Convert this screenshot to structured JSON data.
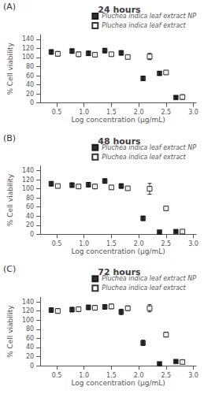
{
  "chart_data": [
    {
      "type": "scatter",
      "title": "24 hours",
      "annotation": "(A)",
      "xlabel": "Log concentration (μg/mL)",
      "ylabel": "% Cell viability",
      "xlim": [
        0.2,
        3.05
      ],
      "xticks": [
        0.5,
        {
          "value": 1.0,
          "label": "1.0"
        },
        1.5,
        {
          "value": 2.0,
          "label": "2.0"
        },
        2.5,
        {
          "value": 3.0,
          "label": "3.0"
        }
      ],
      "ylim": [
        0,
        150
      ],
      "yticks": [
        0,
        20,
        40,
        60,
        80,
        100,
        120,
        140
      ],
      "grid": false,
      "legend": "upper right",
      "series": [
        {
          "name": "Pluchea indica leaf extract NP",
          "color": "#000000",
          "marker": "filled square",
          "x": [
            0.4,
            0.78,
            1.08,
            1.38,
            1.68,
            2.08,
            2.38,
            2.68
          ],
          "values": [
            112,
            114,
            109,
            115,
            110,
            54,
            65,
            12
          ],
          "yerr": [
            5,
            5,
            5,
            5,
            5,
            5,
            4,
            3
          ]
        },
        {
          "name": "Pluchea indica leaf extract",
          "color": "#000000",
          "marker": "open square",
          "x": [
            0.52,
            0.9,
            1.2,
            1.5,
            1.8,
            2.2,
            2.5,
            2.8
          ],
          "values": [
            108,
            107,
            106,
            107,
            101,
            102,
            67,
            13
          ],
          "yerr": [
            5,
            5,
            4,
            4,
            4,
            7,
            4,
            5
          ]
        }
      ]
    },
    {
      "type": "scatter",
      "title": "48 hours",
      "annotation": "(B)",
      "xlabel": "Log concentration (μg/mL)",
      "ylabel": "% Cell viability",
      "xlim": [
        0.2,
        3.05
      ],
      "xticks": [
        0.5,
        {
          "value": 1.0,
          "label": "1.0"
        },
        1.5,
        {
          "value": 2.0,
          "label": "2.0"
        },
        2.5,
        {
          "value": 3.0,
          "label": "3.0"
        }
      ],
      "ylim": [
        0,
        150
      ],
      "yticks": [
        0,
        20,
        40,
        60,
        80,
        100,
        120,
        140
      ],
      "grid": false,
      "legend": "upper right",
      "series": [
        {
          "name": "Pluchea indica leaf extract NP",
          "color": "#000000",
          "marker": "filled square",
          "x": [
            0.4,
            0.78,
            1.08,
            1.38,
            1.68,
            2.08,
            2.38,
            2.68
          ],
          "values": [
            111,
            108,
            109,
            117,
            106,
            35,
            5,
            6
          ],
          "yerr": [
            5,
            5,
            5,
            5,
            5,
            5,
            2,
            2
          ]
        },
        {
          "name": "Pluchea indica leaf extract",
          "color": "#000000",
          "marker": "open square",
          "x": [
            0.52,
            0.9,
            1.2,
            1.5,
            1.8,
            2.2,
            2.5,
            2.8
          ],
          "values": [
            106,
            105,
            105,
            103,
            101,
            100,
            57,
            6
          ],
          "yerr": [
            4,
            4,
            5,
            4,
            4,
            12,
            3,
            3
          ]
        }
      ]
    },
    {
      "type": "scatter",
      "title": "72 hours",
      "annotation": "(C)",
      "xlabel": "Log concentration (μg/mL)",
      "ylabel": "% Cell viability",
      "xlim": [
        0.2,
        3.05
      ],
      "xticks": [
        0.5,
        {
          "value": 1.0,
          "label": "1.0"
        },
        1.5,
        {
          "value": 2.0,
          "label": "2.0"
        },
        2.5,
        {
          "value": 3.0,
          "label": "3.0"
        }
      ],
      "ylim": [
        0,
        150
      ],
      "yticks": [
        0,
        20,
        40,
        60,
        80,
        100,
        120,
        140
      ],
      "grid": false,
      "legend": "upper right",
      "series": [
        {
          "name": "Pluchea indica leaf extract NP",
          "color": "#000000",
          "marker": "filled square",
          "x": [
            0.4,
            0.78,
            1.08,
            1.38,
            1.68,
            2.08,
            2.38,
            2.68
          ],
          "values": [
            122,
            123,
            128,
            129,
            118,
            50,
            4,
            9
          ],
          "yerr": [
            5,
            5,
            5,
            5,
            6,
            6,
            2,
            2
          ]
        },
        {
          "name": "Pluchea indica leaf extract",
          "color": "#000000",
          "marker": "open square",
          "x": [
            0.52,
            0.9,
            1.2,
            1.5,
            1.8,
            2.2,
            2.5,
            2.8
          ],
          "values": [
            120,
            124,
            127,
            130,
            126,
            126,
            68,
            8
          ],
          "yerr": [
            5,
            5,
            5,
            5,
            5,
            8,
            5,
            3
          ]
        }
      ]
    }
  ]
}
